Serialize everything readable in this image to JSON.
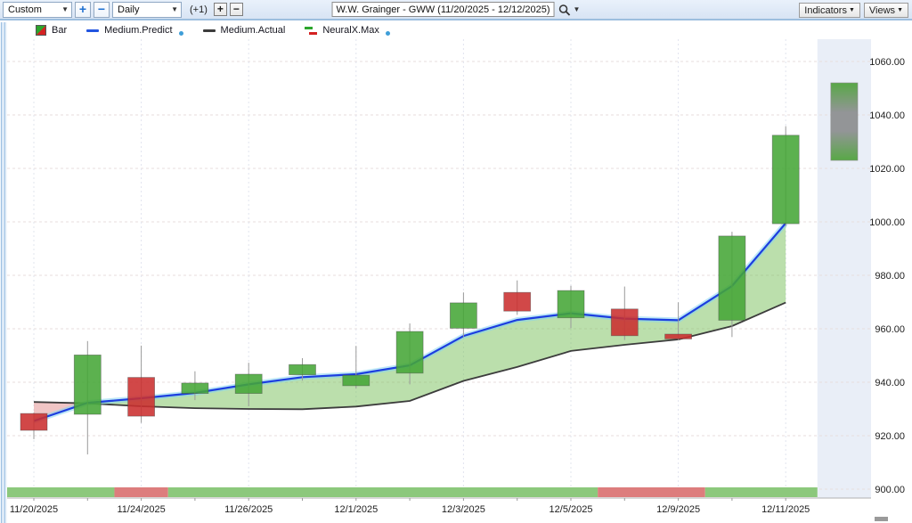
{
  "toolbar": {
    "range_select": "Custom",
    "zoom_in": "+",
    "zoom_out": "−",
    "period_select": "Daily",
    "offset_label": "(+1)",
    "bar_add": "+",
    "bar_remove": "−",
    "title": "W.W. Grainger - GWW (11/20/2025 - 12/12/2025)",
    "indicators_button": "Indicators",
    "views_button": "Views"
  },
  "legend": {
    "items": [
      {
        "label": "Bar"
      },
      {
        "label": "Medium.Predict"
      },
      {
        "label": "Medium.Actual"
      },
      {
        "label": "NeuralX.Max"
      }
    ]
  },
  "chart_data": {
    "type": "candlestick",
    "title": "W.W. Grainger - GWW (11/20/2025 - 12/12/2025)",
    "y_axis": {
      "min": 900,
      "max": 1060,
      "step": 20,
      "ticks": [
        {
          "price": 1060,
          "label": "1060.00"
        },
        {
          "price": 1040,
          "label": "1040.00"
        },
        {
          "price": 1020,
          "label": "1020.00"
        },
        {
          "price": 1000,
          "label": "1000.00"
        },
        {
          "price": 980,
          "label": "980.00"
        },
        {
          "price": 960,
          "label": "960.00"
        },
        {
          "price": 940,
          "label": "940.00"
        },
        {
          "price": 920,
          "label": "920.00"
        },
        {
          "price": 900,
          "label": "900.00"
        }
      ]
    },
    "x_labels": [
      {
        "day": 0,
        "text": "11/20/2025"
      },
      {
        "day": 2,
        "text": "11/24/2025"
      },
      {
        "day": 4,
        "text": "11/26/2025"
      },
      {
        "day": 6,
        "text": "12/1/2025"
      },
      {
        "day": 8,
        "text": "12/3/2025"
      },
      {
        "day": 10,
        "text": "12/5/2025"
      },
      {
        "day": 12,
        "text": "12/9/2025"
      },
      {
        "day": 14,
        "text": "12/11/2025"
      }
    ],
    "candles": [
      {
        "date": "11/20/2025",
        "o": 928.3,
        "h": 928.6,
        "l": 918.7,
        "c": 922.0
      },
      {
        "date": "11/21/2025",
        "o": 928.0,
        "h": 955.4,
        "l": 913.0,
        "c": 950.2
      },
      {
        "date": "11/24/2025",
        "o": 941.8,
        "h": 953.7,
        "l": 924.8,
        "c": 927.3
      },
      {
        "date": "11/25/2025",
        "o": 935.8,
        "h": 944.1,
        "l": 933.3,
        "c": 939.7
      },
      {
        "date": "11/26/2025",
        "o": 935.8,
        "h": 947.3,
        "l": 931.0,
        "c": 943.0
      },
      {
        "date": "11/28/2025",
        "o": 942.8,
        "h": 949.0,
        "l": 940.6,
        "c": 946.6
      },
      {
        "date": "12/1/2025",
        "o": 938.7,
        "h": 953.6,
        "l": 937.6,
        "c": 942.6
      },
      {
        "date": "12/2/2025",
        "o": 943.4,
        "h": 962.0,
        "l": 939.2,
        "c": 959.0
      },
      {
        "date": "12/3/2025",
        "o": 960.2,
        "h": 973.6,
        "l": 956.9,
        "c": 969.7
      },
      {
        "date": "12/4/2025",
        "o": 973.6,
        "h": 978.1,
        "l": 965.2,
        "c": 966.6
      },
      {
        "date": "12/5/2025",
        "o": 964.1,
        "h": 976.1,
        "l": 960.2,
        "c": 974.3
      },
      {
        "date": "12/8/2025",
        "o": 967.4,
        "h": 975.8,
        "l": 955.8,
        "c": 957.4
      },
      {
        "date": "12/9/2025",
        "o": 958.0,
        "h": 969.9,
        "l": 955.6,
        "c": 956.2
      },
      {
        "date": "12/10/2025",
        "o": 963.2,
        "h": 996.3,
        "l": 956.9,
        "c": 994.7
      },
      {
        "date": "12/11/2025",
        "o": 999.3,
        "h": 1035.8,
        "l": 998.3,
        "c": 1032.4
      }
    ],
    "series": [
      {
        "name": "Medium.Predict",
        "values": [
          925.5,
          932.3,
          934.0,
          936.0,
          939.2,
          941.9,
          943.0,
          946.3,
          957.3,
          963.3,
          965.8,
          963.8,
          963.2,
          976.0,
          999.5
        ]
      },
      {
        "name": "Medium.Actual",
        "values": [
          932.6,
          932.1,
          931.0,
          930.3,
          930.0,
          929.9,
          930.9,
          933.0,
          940.5,
          945.7,
          951.7,
          954.0,
          956.0,
          961.0,
          969.8
        ]
      }
    ],
    "sentiment_strip": [
      {
        "from": -0.5,
        "to": 1.5,
        "state": "bullish"
      },
      {
        "from": 1.5,
        "to": 2.5,
        "state": "bearish"
      },
      {
        "from": 2.5,
        "to": 10.5,
        "state": "bullish"
      },
      {
        "from": 10.5,
        "to": 12.5,
        "state": "bearish"
      },
      {
        "from": 12.5,
        "to": 14.59,
        "state": "bullish"
      }
    ],
    "forecast_box": {
      "low": 1023,
      "high": 1052,
      "from_day": 14.84,
      "to_day": 15.34
    },
    "future_zone": {
      "from_day": 14.59
    },
    "colors": {
      "up": "#45a637",
      "down": "#cb2f2f",
      "wick": "#9a9a9a",
      "predict": "#1c3ee0",
      "predict_glow": "rgba(135,212,240,0.55)",
      "actual": "#3c3c3c",
      "fill_bull": "rgba(120,192,90,0.5)",
      "fill_bear": "rgba(228,150,150,0.55)",
      "strip_bullish": "#8cc87c",
      "strip_bearish": "#dd7d7d",
      "future_zone": "#e9eef7",
      "grid_h": "#e7dede",
      "grid_v": "#e2e4ee",
      "axis_text": "#1d1d1d",
      "forecast_green": "#58a846",
      "forecast_gray": "#939597"
    }
  }
}
